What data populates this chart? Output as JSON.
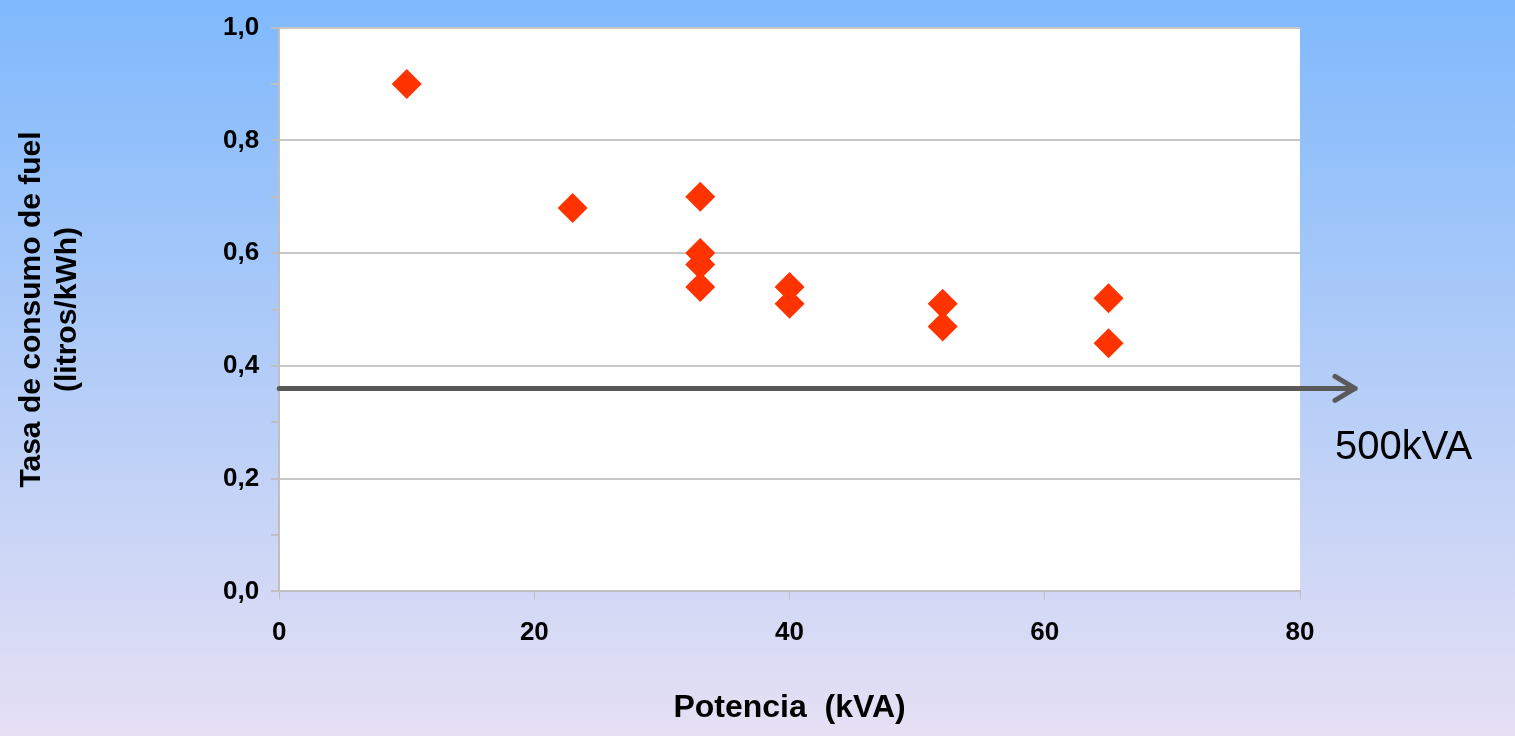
{
  "chart_data": {
    "type": "scatter",
    "xlabel": "Potencia  (kVA)",
    "ylabel": "Tasa de consumo de fuel\n(litros/kWh)",
    "x": [
      10,
      23,
      33,
      33,
      33,
      33,
      40,
      40,
      52,
      52,
      65,
      65
    ],
    "series": [
      {
        "color": "#ff3300",
        "values": [
          0.9,
          0.68,
          0.7,
          0.6,
          0.58,
          0.54,
          0.54,
          0.51,
          0.51,
          0.47,
          0.52,
          0.44
        ]
      }
    ],
    "marker": "diamond",
    "xlim": [
      0,
      80
    ],
    "xticks": [
      0,
      20,
      40,
      60,
      80
    ],
    "ylim": [
      0,
      1
    ],
    "yticks": [
      {
        "value": 0,
        "label": "0,0"
      },
      {
        "value": 0.1,
        "label": null
      },
      {
        "value": 0.2,
        "label": "0,2"
      },
      {
        "value": 0.3,
        "label": null
      },
      {
        "value": 0.4,
        "label": "0,4"
      },
      {
        "value": 0.5,
        "label": null
      },
      {
        "value": 0.6,
        "label": "0,6"
      },
      {
        "value": 0.7,
        "label": null
      },
      {
        "value": 0.8,
        "label": "0,8"
      },
      {
        "value": 0.9,
        "label": null
      },
      {
        "value": 1,
        "label": "1,0"
      }
    ],
    "grid": "y",
    "ref_lines": [
      {
        "axis": "y",
        "value": 0.36,
        "label": "500kVA",
        "color": "#595959"
      }
    ]
  }
}
